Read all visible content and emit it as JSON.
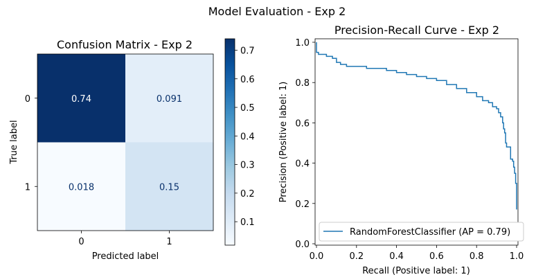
{
  "figure": {
    "suptitle": "Model Evaluation - Exp 2"
  },
  "chart_data": [
    {
      "type": "heatmap",
      "title": "Confusion Matrix - Exp 2",
      "xlabel": "Predicted label",
      "ylabel": "True label",
      "x_categories": [
        "0",
        "1"
      ],
      "y_categories": [
        "0",
        "1"
      ],
      "values": [
        [
          0.74,
          0.091
        ],
        [
          0.018,
          0.15
        ]
      ],
      "cell_labels": [
        [
          "0.74",
          "0.091"
        ],
        [
          "0.018",
          "0.15"
        ]
      ],
      "colormap": "Blues",
      "colorbar": {
        "min": 0.018,
        "max": 0.74,
        "ticks": [
          0.1,
          0.2,
          0.3,
          0.4,
          0.5,
          0.6,
          0.7
        ],
        "tick_labels": [
          "0.1",
          "0.2",
          "0.3",
          "0.4",
          "0.5",
          "0.6",
          "0.7"
        ]
      },
      "colors": {
        "low": "#f7fbff",
        "high": "#08306b",
        "text_on_dark": "#ffffff",
        "text_on_light": "#08306b"
      }
    },
    {
      "type": "line",
      "title": "Precision-Recall Curve - Exp 2",
      "xlabel": "Recall (Positive label: 1)",
      "ylabel": "Precision (Positive label: 1)",
      "xlim": [
        0,
        1
      ],
      "ylim": [
        0,
        1
      ],
      "xticks": [
        "0.0",
        "0.2",
        "0.4",
        "0.6",
        "0.8",
        "1.0"
      ],
      "yticks": [
        "0.0",
        "0.2",
        "0.4",
        "0.6",
        "0.8",
        "1.0"
      ],
      "grid": false,
      "legend_position": "lower-left",
      "series": [
        {
          "name": "RandomForestClassifier (AP = 0.79)",
          "color": "#1f77b4",
          "x": [
            0.0,
            0.0,
            0.01,
            0.01,
            0.02,
            0.05,
            0.08,
            0.1,
            0.12,
            0.15,
            0.2,
            0.25,
            0.3,
            0.35,
            0.4,
            0.45,
            0.5,
            0.55,
            0.6,
            0.65,
            0.7,
            0.75,
            0.8,
            0.83,
            0.86,
            0.88,
            0.9,
            0.91,
            0.92,
            0.93,
            0.935,
            0.94,
            0.945,
            0.95,
            0.96,
            0.97,
            0.98,
            0.985,
            0.99,
            0.995,
            1.0
          ],
          "y": [
            1.0,
            0.95,
            0.95,
            0.94,
            0.94,
            0.93,
            0.92,
            0.9,
            0.89,
            0.88,
            0.88,
            0.87,
            0.87,
            0.86,
            0.85,
            0.84,
            0.83,
            0.82,
            0.81,
            0.79,
            0.77,
            0.75,
            0.73,
            0.71,
            0.7,
            0.68,
            0.67,
            0.65,
            0.63,
            0.6,
            0.57,
            0.55,
            0.5,
            0.48,
            0.48,
            0.42,
            0.41,
            0.38,
            0.35,
            0.3,
            0.17
          ]
        }
      ]
    }
  ]
}
